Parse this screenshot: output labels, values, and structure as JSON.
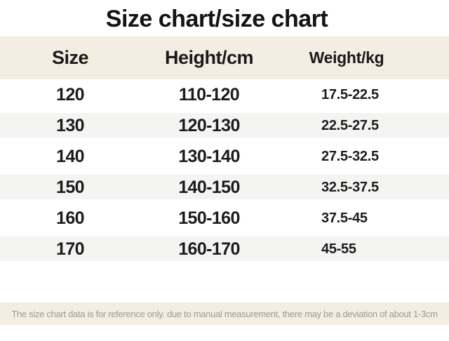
{
  "title": "Size chart/size chart",
  "chart_data": {
    "type": "table",
    "title": "Size chart/size chart",
    "columns": [
      "Size",
      "Height/cm",
      "Weight/kg"
    ],
    "rows": [
      [
        "120",
        "110-120",
        "17.5-22.5"
      ],
      [
        "130",
        "120-130",
        "22.5-27.5"
      ],
      [
        "140",
        "130-140",
        "27.5-32.5"
      ],
      [
        "150",
        "140-150",
        "32.5-37.5"
      ],
      [
        "160",
        "150-160",
        "37.5-45"
      ],
      [
        "170",
        "160-170",
        "45-55"
      ]
    ],
    "note": "The size chart data is for reference only. due to manual measurement, there may be a deviation of about 1-3cm"
  },
  "colors": {
    "header_band": "#f4eee2",
    "stripe": "#f4f4f3",
    "footer_band": "#f4eee2",
    "body_text": "#1c1c1c",
    "footer_text": "#9c9a92"
  },
  "footer": {
    "note": "The size chart data is for reference only. due to manual measurement, there may be a deviation of about 1-3cm"
  }
}
